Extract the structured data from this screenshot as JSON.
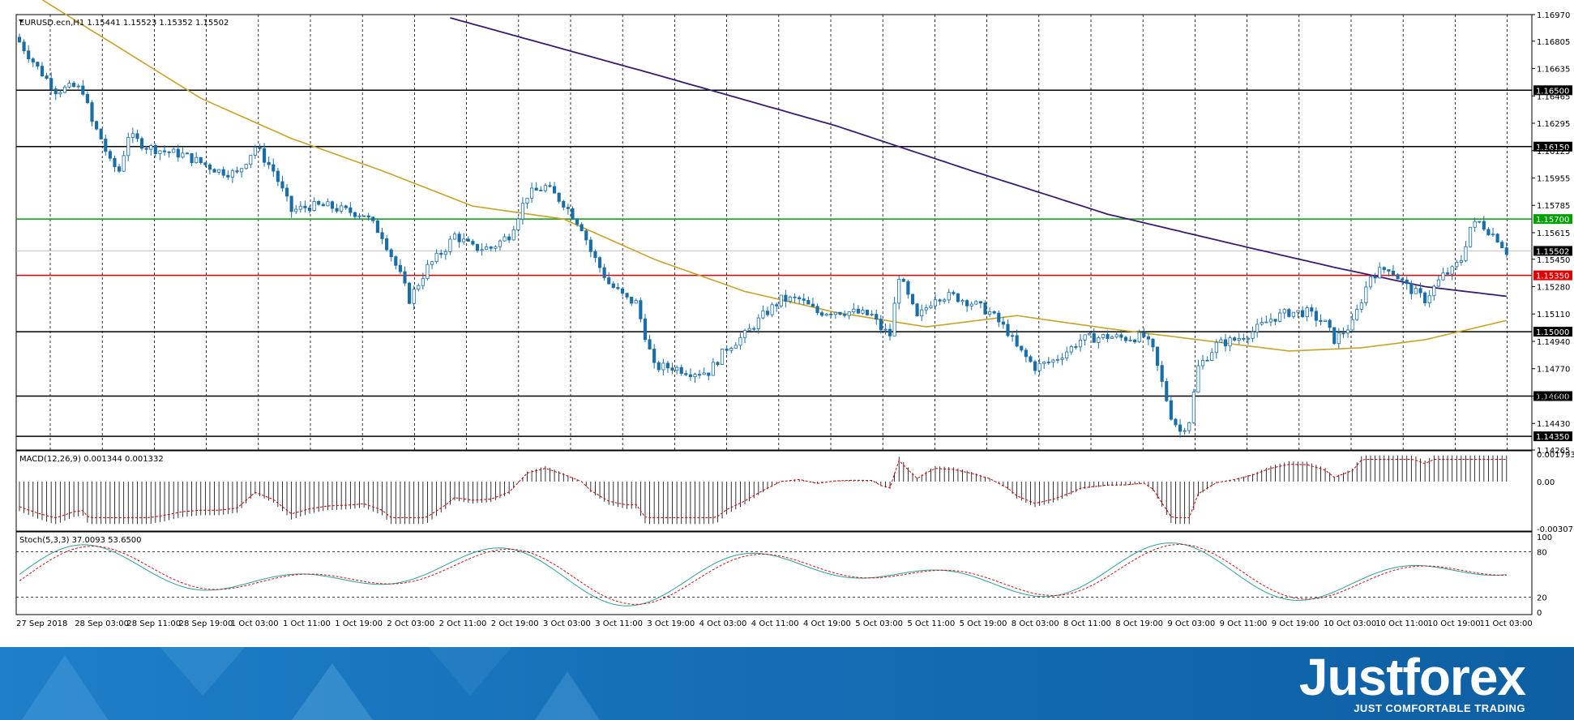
{
  "header": {
    "symbol_line": "EURUSD.ecn,H1  1.15441 1.15523 1.15352 1.15502",
    "macd_line": "MACD(12,26,9) 0.001344 0.001332",
    "stoch_line": "Stoch(5,3,3) 37.0093 53.6500"
  },
  "brand": {
    "logo_text": "Justforex",
    "tagline": "JUST COMFORTABLE TRADING"
  },
  "colors": {
    "bull_candle": "#ffffff",
    "bear_candle": "#1a6ea8",
    "ma_fast": "#c9a227",
    "ma_slow": "#3c1a73",
    "level_green": "#00a000",
    "level_red": "#e00000",
    "level_black": "#000000",
    "stoch_main": "#2aa198",
    "stoch_signal": "#d11111",
    "macd_signal": "#cc0000",
    "banner": "#1670b8"
  },
  "chart_data": {
    "type": "candlestick",
    "price_axis_ticks": [
      "1.16970",
      "1.16805",
      "1.16635",
      "1.16465",
      "1.16295",
      "1.16125",
      "1.15955",
      "1.15785",
      "1.15615",
      "1.15450",
      "1.15280",
      "1.15110",
      "1.14940",
      "1.14770",
      "1.14600",
      "1.14430",
      "1.14265"
    ],
    "price_range": [
      1.14265,
      1.1697
    ],
    "levels": [
      {
        "price": 1.165,
        "label": "1.16500",
        "style": "black"
      },
      {
        "price": 1.1615,
        "label": "1.16150",
        "style": "black"
      },
      {
        "price": 1.157,
        "label": "1.15700",
        "style": "green"
      },
      {
        "price": 1.15502,
        "label": "1.15502",
        "style": "current"
      },
      {
        "price": 1.1535,
        "label": "1.15350",
        "style": "red"
      },
      {
        "price": 1.15,
        "label": "1.15000",
        "style": "black"
      },
      {
        "price": 1.146,
        "label": "1.14600",
        "style": "black"
      },
      {
        "price": 1.1435,
        "label": "1.14350",
        "style": "black"
      }
    ],
    "time_labels": [
      "27 Sep 2018",
      "28 Sep 03:00",
      "28 Sep 11:00",
      "28 Sep 19:00",
      "1 Oct 03:00",
      "1 Oct 11:00",
      "1 Oct 19:00",
      "2 Oct 03:00",
      "2 Oct 11:00",
      "2 Oct 19:00",
      "3 Oct 03:00",
      "3 Oct 11:00",
      "3 Oct 19:00",
      "4 Oct 03:00",
      "4 Oct 11:00",
      "4 Oct 19:00",
      "5 Oct 03:00",
      "5 Oct 11:00",
      "5 Oct 19:00",
      "8 Oct 03:00",
      "8 Oct 11:00",
      "8 Oct 19:00",
      "9 Oct 03:00",
      "9 Oct 11:00",
      "9 Oct 19:00",
      "10 Oct 03:00",
      "10 Oct 11:00",
      "10 Oct 19:00",
      "11 Oct 03:00"
    ],
    "close_path": [
      [
        0,
        1.168
      ],
      [
        4,
        1.1664
      ],
      [
        8,
        1.165
      ],
      [
        12,
        1.1652
      ],
      [
        14,
        1.165
      ],
      [
        16,
        1.163
      ],
      [
        18,
        1.162
      ],
      [
        20,
        1.1605
      ],
      [
        22,
        1.16
      ],
      [
        24,
        1.1622
      ],
      [
        28,
        1.1615
      ],
      [
        32,
        1.1612
      ],
      [
        36,
        1.161
      ],
      [
        40,
        1.1605
      ],
      [
        44,
        1.16
      ],
      [
        48,
        1.1598
      ],
      [
        52,
        1.1615
      ],
      [
        56,
        1.16
      ],
      [
        60,
        1.1575
      ],
      [
        64,
        1.1578
      ],
      [
        68,
        1.1578
      ],
      [
        72,
        1.1575
      ],
      [
        76,
        1.1573
      ],
      [
        80,
        1.156
      ],
      [
        84,
        1.1535
      ],
      [
        86,
        1.152
      ],
      [
        90,
        1.154
      ],
      [
        94,
        1.1552
      ],
      [
        96,
        1.156
      ],
      [
        100,
        1.1552
      ],
      [
        104,
        1.1552
      ],
      [
        108,
        1.156
      ],
      [
        112,
        1.1585
      ],
      [
        116,
        1.159
      ],
      [
        120,
        1.158
      ],
      [
        124,
        1.1565
      ],
      [
        126,
        1.155
      ],
      [
        130,
        1.153
      ],
      [
        134,
        1.152
      ],
      [
        136,
        1.1518
      ],
      [
        140,
        1.1478
      ],
      [
        144,
        1.1478
      ],
      [
        148,
        1.1475
      ],
      [
        152,
        1.1475
      ],
      [
        156,
        1.149
      ],
      [
        160,
        1.1498
      ],
      [
        164,
        1.151
      ],
      [
        168,
        1.152
      ],
      [
        172,
        1.152
      ],
      [
        176,
        1.1512
      ],
      [
        180,
        1.1513
      ],
      [
        184,
        1.1512
      ],
      [
        188,
        1.151
      ],
      [
        190,
        1.1502
      ],
      [
        192,
        1.1498
      ],
      [
        194,
        1.1535
      ],
      [
        198,
        1.1508
      ],
      [
        202,
        1.1522
      ],
      [
        206,
        1.1522
      ],
      [
        210,
        1.1518
      ],
      [
        214,
        1.1512
      ],
      [
        218,
        1.15
      ],
      [
        220,
        1.149
      ],
      [
        224,
        1.1478
      ],
      [
        228,
        1.1482
      ],
      [
        232,
        1.149
      ],
      [
        234,
        1.1495
      ],
      [
        236,
        1.1496
      ],
      [
        240,
        1.1497
      ],
      [
        244,
        1.1496
      ],
      [
        248,
        1.1497
      ],
      [
        250,
        1.1488
      ],
      [
        252,
        1.1468
      ],
      [
        254,
        1.1448
      ],
      [
        256,
        1.1438
      ],
      [
        258,
        1.1445
      ],
      [
        260,
        1.1478
      ],
      [
        264,
        1.1492
      ],
      [
        268,
        1.1495
      ],
      [
        272,
        1.15
      ],
      [
        276,
        1.1508
      ],
      [
        280,
        1.1512
      ],
      [
        284,
        1.1512
      ],
      [
        288,
        1.1505
      ],
      [
        290,
        1.1495
      ],
      [
        292,
        1.15
      ],
      [
        294,
        1.1505
      ],
      [
        298,
        1.1535
      ],
      [
        302,
        1.154
      ],
      [
        306,
        1.1528
      ],
      [
        310,
        1.152
      ],
      [
        314,
        1.1535
      ],
      [
        316,
        1.1538
      ],
      [
        318,
        1.1545
      ],
      [
        320,
        1.1565
      ],
      [
        322,
        1.1568
      ],
      [
        326,
        1.1558
      ],
      [
        328,
        1.155
      ]
    ],
    "ma_fast": [
      [
        0,
        1.1715
      ],
      [
        20,
        1.168
      ],
      [
        40,
        1.1645
      ],
      [
        60,
        1.162
      ],
      [
        80,
        1.16
      ],
      [
        100,
        1.1578
      ],
      [
        120,
        1.157
      ],
      [
        140,
        1.1545
      ],
      [
        160,
        1.1525
      ],
      [
        180,
        1.1512
      ],
      [
        200,
        1.1503
      ],
      [
        220,
        1.151
      ],
      [
        240,
        1.1502
      ],
      [
        260,
        1.1495
      ],
      [
        280,
        1.1488
      ],
      [
        296,
        1.149
      ],
      [
        310,
        1.1495
      ],
      [
        328,
        1.1507
      ]
    ],
    "ma_slow": [
      [
        95,
        1.1695
      ],
      [
        140,
        1.166
      ],
      [
        180,
        1.1628
      ],
      [
        210,
        1.16
      ],
      [
        240,
        1.1573
      ],
      [
        270,
        1.1553
      ],
      [
        290,
        1.154
      ],
      [
        310,
        1.1528
      ],
      [
        328,
        1.1522
      ]
    ],
    "macd_range": [
      -0.00307,
      0.001793
    ],
    "macd_ticks": [
      "0.001793",
      "0.00",
      "-0.00307"
    ],
    "stoch_ticks": [
      "100",
      "80",
      "20",
      "0"
    ],
    "stoch_levels": [
      80,
      20
    ]
  }
}
